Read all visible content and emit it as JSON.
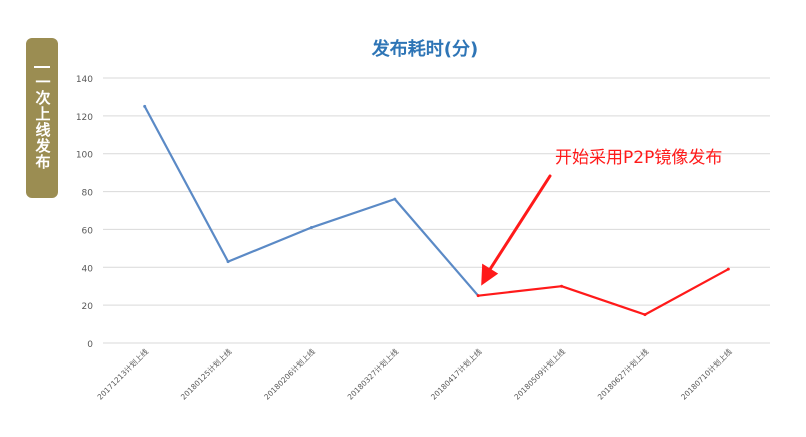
{
  "side_label": "一次上线发布",
  "colors": {
    "badge": "#9b8d52",
    "series_before": "#5b8ac6",
    "series_after": "#ff1a1a",
    "title": "#2e75b6",
    "grid": "#d9d9d9",
    "tick": "#595959",
    "annotation": "#ff1a1a"
  },
  "chart_data": {
    "type": "line",
    "title": "发布耗时(分)",
    "xlabel": "",
    "ylabel": "",
    "ylim": [
      0,
      140
    ],
    "yticks": [
      "0",
      "20",
      "40",
      "60",
      "80",
      "100",
      "120",
      "140"
    ],
    "grid": true,
    "categories": [
      "20171213计划上线",
      "20180125计划上线",
      "20180206计划上线",
      "20180327计划上线",
      "20180417计划上线",
      "20180509计划上线",
      "20180627计划上线",
      "20180710计划上线"
    ],
    "values": [
      125,
      43,
      61,
      76,
      25,
      30,
      15,
      39
    ],
    "annotation": {
      "text": "开始采用P2P镜像发布",
      "points_to": "20180417计划上线"
    }
  }
}
